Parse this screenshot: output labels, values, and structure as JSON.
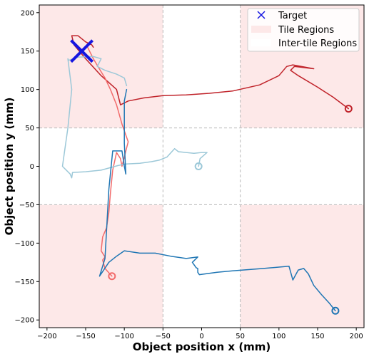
{
  "chart_data": {
    "type": "line",
    "title": "",
    "xlabel": "Object position x (mm)",
    "ylabel": "Object position y (mm)",
    "xlim": [
      -210,
      210
    ],
    "ylim": [
      -210,
      210
    ],
    "x_ticks": [
      -200,
      -150,
      -100,
      -50,
      0,
      50,
      100,
      150,
      200
    ],
    "y_ticks": [
      -200,
      -150,
      -100,
      -50,
      0,
      50,
      100,
      150,
      200
    ],
    "grid": false,
    "legend_position": "top-right",
    "legend": {
      "target_label": "Target",
      "tile_label": "Tile Regions",
      "intertile_label": "Inter-tile Regions"
    },
    "colors": {
      "tile_region": "#fde8e8",
      "intertile_region": "#ffffff",
      "divider": "#b8b8b8",
      "target": "#1515e0"
    },
    "tile_boundaries": {
      "x": [
        -50,
        50
      ],
      "y": [
        -50,
        50
      ]
    },
    "target": {
      "x": -155,
      "y": 150
    },
    "series": [
      {
        "color": "#c0232a",
        "start": [
          190,
          75
        ],
        "points": [
          [
            190,
            75
          ],
          [
            170,
            90
          ],
          [
            150,
            103
          ],
          [
            125,
            118
          ],
          [
            115,
            125
          ],
          [
            120,
            130
          ],
          [
            145,
            127
          ],
          [
            118,
            132
          ],
          [
            110,
            130
          ],
          [
            100,
            118
          ],
          [
            75,
            106
          ],
          [
            40,
            98
          ],
          [
            10,
            95
          ],
          [
            -20,
            93
          ],
          [
            -50,
            92
          ],
          [
            -75,
            89
          ],
          [
            -95,
            85
          ],
          [
            -105,
            80
          ],
          [
            -110,
            100
          ],
          [
            -130,
            118
          ],
          [
            -150,
            140
          ],
          [
            -165,
            158
          ],
          [
            -168,
            170
          ],
          [
            -160,
            170
          ],
          [
            -150,
            162
          ],
          [
            -142,
            158
          ],
          [
            -140,
            155
          ]
        ]
      },
      {
        "color": "#f26b6b",
        "start": [
          -116,
          -143
        ],
        "points": [
          [
            -116,
            -143
          ],
          [
            -125,
            -133
          ],
          [
            -128,
            -122
          ],
          [
            -125,
            -118
          ],
          [
            -130,
            -110
          ],
          [
            -128,
            -92
          ],
          [
            -123,
            -80
          ],
          [
            -120,
            -60
          ],
          [
            -118,
            -35
          ],
          [
            -115,
            -5
          ],
          [
            -110,
            18
          ],
          [
            -105,
            10
          ],
          [
            -103,
            0
          ],
          [
            -95,
            32
          ],
          [
            -103,
            55
          ],
          [
            -110,
            80
          ],
          [
            -118,
            100
          ],
          [
            -125,
            115
          ],
          [
            -133,
            128
          ],
          [
            -140,
            140
          ],
          [
            -145,
            150
          ],
          [
            -148,
            156
          ]
        ]
      },
      {
        "color": "#9cc8d8",
        "start": [
          -4,
          0
        ],
        "points": [
          [
            -4,
            0
          ],
          [
            -2,
            10
          ],
          [
            7,
            18
          ],
          [
            0,
            18
          ],
          [
            -10,
            17
          ],
          [
            -20,
            18
          ],
          [
            -30,
            19
          ],
          [
            -35,
            23
          ],
          [
            -45,
            12
          ],
          [
            -55,
            8
          ],
          [
            -65,
            6
          ],
          [
            -80,
            4
          ],
          [
            -98,
            3
          ],
          [
            -108,
            1
          ],
          [
            -130,
            -5
          ],
          [
            -150,
            -7
          ],
          [
            -167,
            -8
          ],
          [
            -168,
            -15
          ],
          [
            -170,
            -10
          ],
          [
            -180,
            0
          ],
          [
            -173,
            50
          ],
          [
            -168,
            100
          ],
          [
            -173,
            140
          ],
          [
            -172,
            138
          ],
          [
            -160,
            142
          ],
          [
            -140,
            143
          ],
          [
            -130,
            140
          ],
          [
            -135,
            130
          ],
          [
            -125,
            125
          ],
          [
            -110,
            120
          ],
          [
            -100,
            115
          ],
          [
            -97,
            105
          ]
        ]
      },
      {
        "color": "#1f76b4",
        "start": [
          173,
          -188
        ],
        "points": [
          [
            173,
            -188
          ],
          [
            165,
            -178
          ],
          [
            155,
            -167
          ],
          [
            145,
            -155
          ],
          [
            138,
            -140
          ],
          [
            132,
            -133
          ],
          [
            125,
            -135
          ],
          [
            118,
            -148
          ],
          [
            113,
            -130
          ],
          [
            80,
            -133
          ],
          [
            40,
            -136
          ],
          [
            20,
            -138
          ],
          [
            -3,
            -141
          ],
          [
            -5,
            -138
          ],
          [
            -5,
            -133
          ],
          [
            -7,
            -132
          ],
          [
            -12,
            -125
          ],
          [
            -5,
            -118
          ],
          [
            -20,
            -120
          ],
          [
            -40,
            -117
          ],
          [
            -60,
            -113
          ],
          [
            -80,
            -113
          ],
          [
            -100,
            -110
          ],
          [
            -110,
            -117
          ],
          [
            -120,
            -125
          ],
          [
            -128,
            -137
          ],
          [
            -132,
            -143
          ],
          [
            -125,
            -120
          ],
          [
            -120,
            -30
          ],
          [
            -115,
            20
          ],
          [
            -103,
            20
          ],
          [
            -100,
            0
          ],
          [
            -98,
            -10
          ],
          [
            -100,
            30
          ],
          [
            -100,
            60
          ],
          [
            -100,
            85
          ],
          [
            -97,
            100
          ]
        ]
      }
    ]
  }
}
